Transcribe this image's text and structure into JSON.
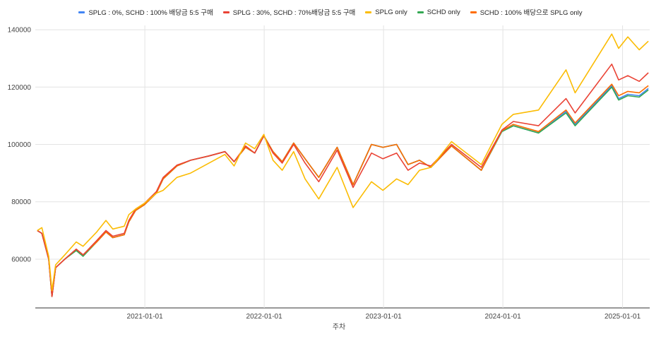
{
  "chart_data": {
    "type": "line",
    "title": "",
    "xlabel": "주차",
    "ylabel": "",
    "ylim": [
      43000,
      141500
    ],
    "yticks": [
      60000,
      80000,
      100000,
      120000,
      140000
    ],
    "xticks": [
      "2021-01-01",
      "2022-01-01",
      "2023-01-01",
      "2024-01-01",
      "2025-01-01"
    ],
    "grid": true,
    "legend_position": "top",
    "series": [
      {
        "name": "SPLG : 0%, SCHD : 100% 배당금 5:5 구매",
        "color": "#4285f4",
        "points": [
          [
            "2020-02-07",
            70000
          ],
          [
            "2020-02-21",
            69000
          ],
          [
            "2020-03-13",
            60000
          ],
          [
            "2020-03-23",
            47000
          ],
          [
            "2020-04-03",
            57000
          ],
          [
            "2020-05-01",
            60000
          ],
          [
            "2020-06-05",
            63500
          ],
          [
            "2020-06-26",
            61500
          ],
          [
            "2020-08-07",
            66000
          ],
          [
            "2020-09-04",
            69500
          ],
          [
            "2020-09-25",
            67500
          ],
          [
            "2020-10-30",
            68500
          ],
          [
            "2020-11-13",
            73000
          ],
          [
            "2020-12-04",
            77000
          ],
          [
            "2020-12-31",
            79000
          ],
          [
            "2021-02-05",
            83000
          ],
          [
            "2021-02-26",
            88000
          ],
          [
            "2021-04-09",
            92500
          ],
          [
            "2021-05-21",
            94500
          ],
          [
            "2021-07-16",
            96000
          ],
          [
            "2021-09-03",
            97500
          ],
          [
            "2021-10-01",
            94000
          ],
          [
            "2021-11-05",
            99000
          ],
          [
            "2021-12-03",
            97000
          ],
          [
            "2021-12-31",
            103000
          ],
          [
            "2022-01-28",
            97500
          ],
          [
            "2022-02-25",
            94000
          ],
          [
            "2022-04-01",
            100500
          ],
          [
            "2022-05-06",
            95000
          ],
          [
            "2022-06-17",
            88500
          ],
          [
            "2022-08-12",
            99000
          ],
          [
            "2022-09-30",
            86000
          ],
          [
            "2022-11-25",
            100000
          ],
          [
            "2022-12-30",
            99000
          ],
          [
            "2023-02-10",
            100000
          ],
          [
            "2023-03-17",
            93000
          ],
          [
            "2023-04-21",
            94500
          ],
          [
            "2023-05-26",
            92000
          ],
          [
            "2023-07-28",
            99500
          ],
          [
            "2023-10-27",
            91000
          ],
          [
            "2023-12-29",
            104500
          ],
          [
            "2024-02-02",
            106500
          ],
          [
            "2024-04-19",
            104000
          ],
          [
            "2024-07-12",
            111500
          ],
          [
            "2024-08-09",
            107000
          ],
          [
            "2024-11-29",
            120500
          ],
          [
            "2024-12-20",
            116000
          ],
          [
            "2025-01-17",
            117500
          ],
          [
            "2025-02-21",
            117000
          ],
          [
            "2025-03-21",
            119500
          ]
        ]
      },
      {
        "name": "SPLG : 30%, SCHD : 70%배당금 5:5 구매",
        "color": "#ea4335",
        "points": [
          [
            "2020-02-07",
            70000
          ],
          [
            "2020-02-21",
            69000
          ],
          [
            "2020-03-13",
            60000
          ],
          [
            "2020-03-23",
            47000
          ],
          [
            "2020-04-03",
            57000
          ],
          [
            "2020-05-01",
            60000
          ],
          [
            "2020-06-05",
            63500
          ],
          [
            "2020-06-26",
            61500
          ],
          [
            "2020-08-07",
            66500
          ],
          [
            "2020-09-04",
            70000
          ],
          [
            "2020-09-25",
            68000
          ],
          [
            "2020-10-30",
            69000
          ],
          [
            "2020-11-13",
            73500
          ],
          [
            "2020-12-04",
            77500
          ],
          [
            "2020-12-31",
            79500
          ],
          [
            "2021-02-05",
            83500
          ],
          [
            "2021-02-26",
            88500
          ],
          [
            "2021-04-09",
            92800
          ],
          [
            "2021-05-21",
            94500
          ],
          [
            "2021-07-16",
            96000
          ],
          [
            "2021-09-03",
            97500
          ],
          [
            "2021-10-01",
            94000
          ],
          [
            "2021-11-05",
            99500
          ],
          [
            "2021-12-03",
            97000
          ],
          [
            "2021-12-31",
            103000
          ],
          [
            "2022-01-28",
            97000
          ],
          [
            "2022-02-25",
            93500
          ],
          [
            "2022-04-01",
            100000
          ],
          [
            "2022-05-06",
            93500
          ],
          [
            "2022-06-17",
            87000
          ],
          [
            "2022-08-12",
            98000
          ],
          [
            "2022-09-30",
            85000
          ],
          [
            "2022-11-25",
            97000
          ],
          [
            "2022-12-30",
            95000
          ],
          [
            "2023-02-10",
            97000
          ],
          [
            "2023-03-17",
            91000
          ],
          [
            "2023-04-21",
            93500
          ],
          [
            "2023-05-26",
            92500
          ],
          [
            "2023-07-28",
            100000
          ],
          [
            "2023-10-27",
            92000
          ],
          [
            "2023-12-29",
            105000
          ],
          [
            "2024-02-02",
            108000
          ],
          [
            "2024-04-19",
            106500
          ],
          [
            "2024-07-12",
            116000
          ],
          [
            "2024-08-09",
            111000
          ],
          [
            "2024-11-29",
            128000
          ],
          [
            "2024-12-20",
            122500
          ],
          [
            "2025-01-17",
            124000
          ],
          [
            "2025-02-21",
            122000
          ],
          [
            "2025-03-21",
            125000
          ]
        ]
      },
      {
        "name": "SPLG only",
        "color": "#fbbc04",
        "points": [
          [
            "2020-02-07",
            70000
          ],
          [
            "2020-02-21",
            71000
          ],
          [
            "2020-03-13",
            61000
          ],
          [
            "2020-03-23",
            49000
          ],
          [
            "2020-04-03",
            58000
          ],
          [
            "2020-05-01",
            61500
          ],
          [
            "2020-06-05",
            66000
          ],
          [
            "2020-06-26",
            64500
          ],
          [
            "2020-08-07",
            69500
          ],
          [
            "2020-09-04",
            73500
          ],
          [
            "2020-09-25",
            70500
          ],
          [
            "2020-10-30",
            71500
          ],
          [
            "2020-11-13",
            75500
          ],
          [
            "2020-12-04",
            77500
          ],
          [
            "2020-12-31",
            79500
          ],
          [
            "2021-02-05",
            83000
          ],
          [
            "2021-02-26",
            84000
          ],
          [
            "2021-04-09",
            88500
          ],
          [
            "2021-05-21",
            90000
          ],
          [
            "2021-07-16",
            93500
          ],
          [
            "2021-09-03",
            96500
          ],
          [
            "2021-10-01",
            92500
          ],
          [
            "2021-11-05",
            100500
          ],
          [
            "2021-12-03",
            98500
          ],
          [
            "2021-12-31",
            103500
          ],
          [
            "2022-01-28",
            94500
          ],
          [
            "2022-02-25",
            91000
          ],
          [
            "2022-04-01",
            97500
          ],
          [
            "2022-05-06",
            88000
          ],
          [
            "2022-06-17",
            81000
          ],
          [
            "2022-08-12",
            92000
          ],
          [
            "2022-09-30",
            78000
          ],
          [
            "2022-11-25",
            87000
          ],
          [
            "2022-12-30",
            84000
          ],
          [
            "2023-02-10",
            88000
          ],
          [
            "2023-03-17",
            86000
          ],
          [
            "2023-04-21",
            91000
          ],
          [
            "2023-05-26",
            92000
          ],
          [
            "2023-07-28",
            101000
          ],
          [
            "2023-10-27",
            93000
          ],
          [
            "2023-12-29",
            107000
          ],
          [
            "2024-02-02",
            110500
          ],
          [
            "2024-04-19",
            112000
          ],
          [
            "2024-07-12",
            126000
          ],
          [
            "2024-08-09",
            118000
          ],
          [
            "2024-11-29",
            138500
          ],
          [
            "2024-12-20",
            133500
          ],
          [
            "2025-01-17",
            137500
          ],
          [
            "2025-02-21",
            133000
          ],
          [
            "2025-03-21",
            136000
          ]
        ]
      },
      {
        "name": "SCHD only",
        "color": "#34a853",
        "points": [
          [
            "2020-02-07",
            70000
          ],
          [
            "2020-02-21",
            69000
          ],
          [
            "2020-03-13",
            60000
          ],
          [
            "2020-03-23",
            47000
          ],
          [
            "2020-04-03",
            57000
          ],
          [
            "2020-05-01",
            60000
          ],
          [
            "2020-06-05",
            63000
          ],
          [
            "2020-06-26",
            61000
          ],
          [
            "2020-08-07",
            66000
          ],
          [
            "2020-09-04",
            69500
          ],
          [
            "2020-09-25",
            67500
          ],
          [
            "2020-10-30",
            68500
          ],
          [
            "2020-11-13",
            73000
          ],
          [
            "2020-12-04",
            77000
          ],
          [
            "2020-12-31",
            79000
          ],
          [
            "2021-02-05",
            83000
          ],
          [
            "2021-02-26",
            88000
          ],
          [
            "2021-04-09",
            92500
          ],
          [
            "2021-05-21",
            94500
          ],
          [
            "2021-07-16",
            96000
          ],
          [
            "2021-09-03",
            97500
          ],
          [
            "2021-10-01",
            94000
          ],
          [
            "2021-11-05",
            99000
          ],
          [
            "2021-12-03",
            97000
          ],
          [
            "2021-12-31",
            103000
          ],
          [
            "2022-01-28",
            97500
          ],
          [
            "2022-02-25",
            94000
          ],
          [
            "2022-04-01",
            100500
          ],
          [
            "2022-05-06",
            95000
          ],
          [
            "2022-06-17",
            88500
          ],
          [
            "2022-08-12",
            99000
          ],
          [
            "2022-09-30",
            86000
          ],
          [
            "2022-11-25",
            100000
          ],
          [
            "2022-12-30",
            99000
          ],
          [
            "2023-02-10",
            100000
          ],
          [
            "2023-03-17",
            93000
          ],
          [
            "2023-04-21",
            94500
          ],
          [
            "2023-05-26",
            92000
          ],
          [
            "2023-07-28",
            99500
          ],
          [
            "2023-10-27",
            91000
          ],
          [
            "2023-12-29",
            104500
          ],
          [
            "2024-02-02",
            106500
          ],
          [
            "2024-04-19",
            104000
          ],
          [
            "2024-07-12",
            111000
          ],
          [
            "2024-08-09",
            106500
          ],
          [
            "2024-11-29",
            120000
          ],
          [
            "2024-12-20",
            115500
          ],
          [
            "2025-01-17",
            117000
          ],
          [
            "2025-02-21",
            116500
          ],
          [
            "2025-03-21",
            119000
          ]
        ]
      },
      {
        "name": "SCHD : 100% 배당으로 SPLG only",
        "color": "#ff6d01",
        "points": [
          [
            "2020-02-07",
            70000
          ],
          [
            "2020-02-21",
            69000
          ],
          [
            "2020-03-13",
            60000
          ],
          [
            "2020-03-23",
            47000
          ],
          [
            "2020-04-03",
            57000
          ],
          [
            "2020-05-01",
            60000
          ],
          [
            "2020-06-05",
            63500
          ],
          [
            "2020-06-26",
            61500
          ],
          [
            "2020-08-07",
            66000
          ],
          [
            "2020-09-04",
            69500
          ],
          [
            "2020-09-25",
            67500
          ],
          [
            "2020-10-30",
            68500
          ],
          [
            "2020-11-13",
            73000
          ],
          [
            "2020-12-04",
            77000
          ],
          [
            "2020-12-31",
            79000
          ],
          [
            "2021-02-05",
            83000
          ],
          [
            "2021-02-26",
            88000
          ],
          [
            "2021-04-09",
            92500
          ],
          [
            "2021-05-21",
            94500
          ],
          [
            "2021-07-16",
            96000
          ],
          [
            "2021-09-03",
            97500
          ],
          [
            "2021-10-01",
            94000
          ],
          [
            "2021-11-05",
            99000
          ],
          [
            "2021-12-03",
            97000
          ],
          [
            "2021-12-31",
            103000
          ],
          [
            "2022-01-28",
            97500
          ],
          [
            "2022-02-25",
            94000
          ],
          [
            "2022-04-01",
            100500
          ],
          [
            "2022-05-06",
            95000
          ],
          [
            "2022-06-17",
            88500
          ],
          [
            "2022-08-12",
            99000
          ],
          [
            "2022-09-30",
            86000
          ],
          [
            "2022-11-25",
            100000
          ],
          [
            "2022-12-30",
            99000
          ],
          [
            "2023-02-10",
            100000
          ],
          [
            "2023-03-17",
            93000
          ],
          [
            "2023-04-21",
            94500
          ],
          [
            "2023-05-26",
            92000
          ],
          [
            "2023-07-28",
            99500
          ],
          [
            "2023-10-27",
            91000
          ],
          [
            "2023-12-29",
            104800
          ],
          [
            "2024-02-02",
            107000
          ],
          [
            "2024-04-19",
            104500
          ],
          [
            "2024-07-12",
            112000
          ],
          [
            "2024-08-09",
            107500
          ],
          [
            "2024-11-29",
            121000
          ],
          [
            "2024-12-20",
            117000
          ],
          [
            "2025-01-17",
            118500
          ],
          [
            "2025-02-21",
            118000
          ],
          [
            "2025-03-21",
            120500
          ]
        ]
      }
    ]
  }
}
